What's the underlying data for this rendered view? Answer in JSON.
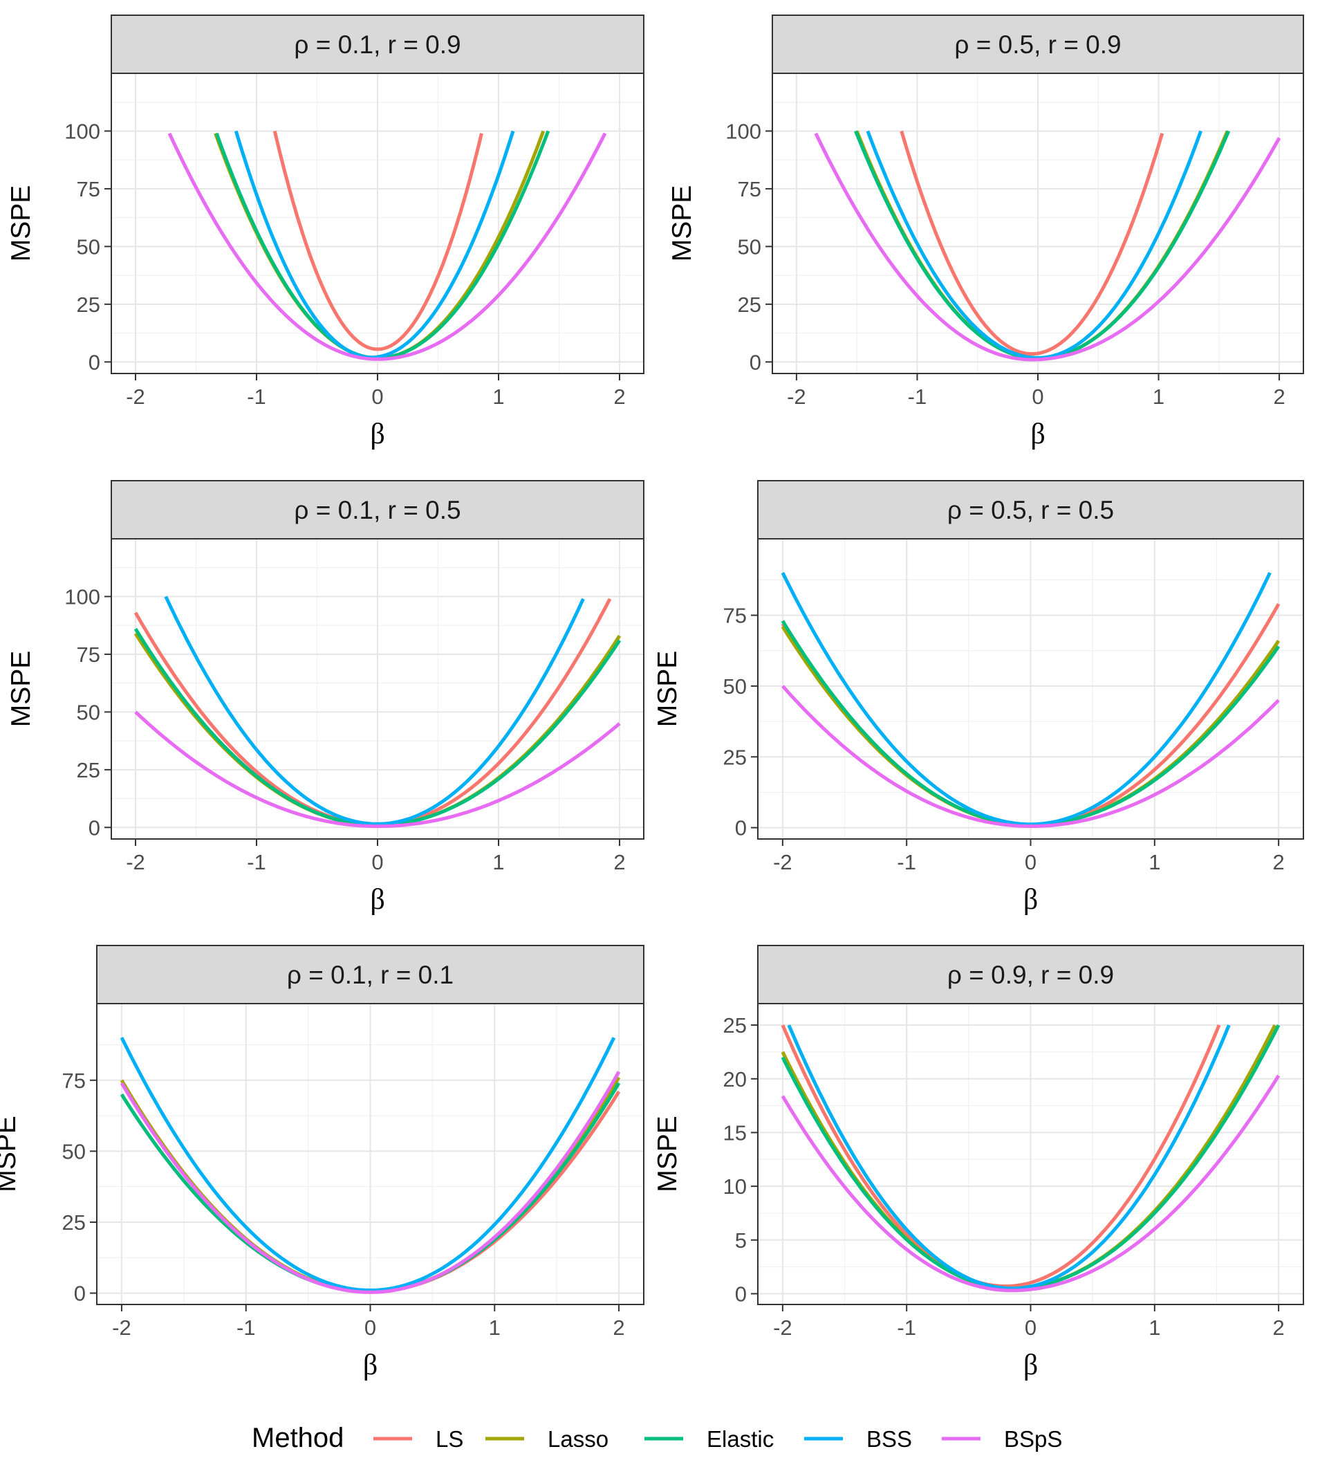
{
  "colors": {
    "LS": "#F8766D",
    "Lasso": "#A3A500",
    "Elastic": "#00BF7D",
    "BSS": "#00B0F6",
    "BSpS": "#E76BF3"
  },
  "legend": {
    "title": "Method",
    "items": [
      "LS",
      "Lasso",
      "Elastic",
      "BSS",
      "BSpS"
    ]
  },
  "chart_data": [
    {
      "type": "line",
      "title": "ρ = 0.1,  r = 0.9",
      "xlabel": "β",
      "ylabel": "MSPE",
      "xlim": [
        -2.2,
        2.2
      ],
      "ylim": [
        -5,
        125
      ],
      "xticks": [
        -2,
        -1,
        0,
        1,
        2
      ],
      "xtick_labels": [
        "-2",
        "-1",
        "0",
        "1",
        "2"
      ],
      "yticks": [
        0,
        25,
        50,
        75,
        100
      ],
      "ytick_labels": [
        "0",
        "25",
        "50",
        "75",
        "100"
      ],
      "series": [
        {
          "name": "LS",
          "x_range": [
            -0.85,
            0.86
          ],
          "vertex": 0.0,
          "min": 5.5,
          "left_end": 100,
          "right_end": 99
        },
        {
          "name": "Lasso",
          "x_range": [
            -1.34,
            1.37
          ],
          "vertex": 0.0,
          "min": 1.7,
          "left_end": 99,
          "right_end": 100
        },
        {
          "name": "Elastic",
          "x_range": [
            -1.33,
            1.41
          ],
          "vertex": 0.0,
          "min": 1.7,
          "left_end": 99,
          "right_end": 100
        },
        {
          "name": "BSS",
          "x_range": [
            -1.17,
            1.12
          ],
          "vertex": -0.05,
          "min": 2.0,
          "left_end": 100,
          "right_end": 100
        },
        {
          "name": "BSpS",
          "x_range": [
            -1.72,
            1.88
          ],
          "vertex": 0.0,
          "min": 1.2,
          "left_end": 99,
          "right_end": 99
        }
      ]
    },
    {
      "type": "line",
      "title": "ρ = 0.5,  r = 0.9",
      "xlabel": "β",
      "ylabel": "MSPE",
      "xlim": [
        -2.2,
        2.2
      ],
      "ylim": [
        -5,
        125
      ],
      "xticks": [
        -2,
        -1,
        0,
        1,
        2
      ],
      "xtick_labels": [
        "-2",
        "-1",
        "0",
        "1",
        "2"
      ],
      "yticks": [
        0,
        25,
        50,
        75,
        100
      ],
      "ytick_labels": [
        "0",
        "25",
        "50",
        "75",
        "100"
      ],
      "series": [
        {
          "name": "LS",
          "x_range": [
            -1.13,
            1.03
          ],
          "vertex": -0.05,
          "min": 3.5,
          "left_end": 100,
          "right_end": 99
        },
        {
          "name": "Lasso",
          "x_range": [
            -1.5,
            1.57
          ],
          "vertex": 0.0,
          "min": 1.5,
          "left_end": 100,
          "right_end": 100
        },
        {
          "name": "Elastic",
          "x_range": [
            -1.51,
            1.58
          ],
          "vertex": 0.0,
          "min": 1.5,
          "left_end": 100,
          "right_end": 100
        },
        {
          "name": "BSS",
          "x_range": [
            -1.41,
            1.35
          ],
          "vertex": 0.0,
          "min": 1.8,
          "left_end": 100,
          "right_end": 100
        },
        {
          "name": "BSpS",
          "x_range": [
            -1.84,
            2.0
          ],
          "vertex": -0.05,
          "min": 1.0,
          "left_end": 99,
          "right_end": 97
        }
      ]
    },
    {
      "type": "line",
      "title": "ρ = 0.1,  r = 0.5",
      "xlabel": "β",
      "ylabel": "MSPE",
      "xlim": [
        -2.2,
        2.2
      ],
      "ylim": [
        -5,
        125
      ],
      "xticks": [
        -2,
        -1,
        0,
        1,
        2
      ],
      "xtick_labels": [
        "-2",
        "-1",
        "0",
        "1",
        "2"
      ],
      "yticks": [
        0,
        25,
        50,
        75,
        100
      ],
      "ytick_labels": [
        "0",
        "25",
        "50",
        "75",
        "100"
      ],
      "series": [
        {
          "name": "LS",
          "x_range": [
            -2.0,
            1.92
          ],
          "vertex": 0.0,
          "min": 1.2,
          "left_end": 93,
          "right_end": 99
        },
        {
          "name": "Lasso",
          "x_range": [
            -2.0,
            2.0
          ],
          "vertex": 0.0,
          "min": 1.0,
          "left_end": 84,
          "right_end": 83
        },
        {
          "name": "Elastic",
          "x_range": [
            -2.0,
            2.0
          ],
          "vertex": 0.0,
          "min": 1.0,
          "left_end": 86,
          "right_end": 81
        },
        {
          "name": "BSS",
          "x_range": [
            -1.75,
            1.7
          ],
          "vertex": 0.0,
          "min": 1.5,
          "left_end": 100,
          "right_end": 99
        },
        {
          "name": "BSpS",
          "x_range": [
            -2.0,
            2.0
          ],
          "vertex": 0.0,
          "min": 0.5,
          "left_end": 50,
          "right_end": 45
        }
      ]
    },
    {
      "type": "line",
      "title": "ρ = 0.5,  r = 0.5",
      "xlabel": "β",
      "ylabel": "MSPE",
      "xlim": [
        -2.2,
        2.2
      ],
      "ylim": [
        -4,
        102
      ],
      "xticks": [
        -2,
        -1,
        0,
        1,
        2
      ],
      "xtick_labels": [
        "-2",
        "-1",
        "0",
        "1",
        "2"
      ],
      "yticks": [
        0,
        25,
        50,
        75
      ],
      "ytick_labels": [
        "0",
        "25",
        "50",
        "75"
      ],
      "series": [
        {
          "name": "LS",
          "x_range": [
            -2.0,
            2.0
          ],
          "vertex": 0.0,
          "min": 1.0,
          "left_end": 72,
          "right_end": 79
        },
        {
          "name": "Lasso",
          "x_range": [
            -2.0,
            2.0
          ],
          "vertex": 0.0,
          "min": 1.0,
          "left_end": 71,
          "right_end": 66
        },
        {
          "name": "Elastic",
          "x_range": [
            -2.0,
            2.0
          ],
          "vertex": 0.0,
          "min": 1.0,
          "left_end": 73,
          "right_end": 64
        },
        {
          "name": "BSS",
          "x_range": [
            -2.0,
            1.93
          ],
          "vertex": 0.0,
          "min": 1.2,
          "left_end": 90,
          "right_end": 90
        },
        {
          "name": "BSpS",
          "x_range": [
            -2.0,
            2.0
          ],
          "vertex": 0.0,
          "min": 0.5,
          "left_end": 50,
          "right_end": 45
        }
      ]
    },
    {
      "type": "line",
      "title": "ρ = 0.1,  r = 0.1",
      "xlabel": "β",
      "ylabel": "MSPE",
      "xlim": [
        -2.2,
        2.2
      ],
      "ylim": [
        -4,
        102
      ],
      "xticks": [
        -2,
        -1,
        0,
        1,
        2
      ],
      "xtick_labels": [
        "-2",
        "-1",
        "0",
        "1",
        "2"
      ],
      "yticks": [
        0,
        25,
        50,
        75
      ],
      "ytick_labels": [
        "0",
        "25",
        "50",
        "75"
      ],
      "series": [
        {
          "name": "LS",
          "x_range": [
            -2.0,
            2.0
          ],
          "vertex": 0.0,
          "min": 0.5,
          "left_end": 70,
          "right_end": 71
        },
        {
          "name": "Lasso",
          "x_range": [
            -2.0,
            2.0
          ],
          "vertex": 0.0,
          "min": 0.5,
          "left_end": 75,
          "right_end": 76
        },
        {
          "name": "Elastic",
          "x_range": [
            -2.0,
            2.0
          ],
          "vertex": 0.0,
          "min": 0.5,
          "left_end": 70,
          "right_end": 74
        },
        {
          "name": "BSS",
          "x_range": [
            -2.0,
            1.96
          ],
          "vertex": 0.0,
          "min": 1.0,
          "left_end": 90,
          "right_end": 90
        },
        {
          "name": "BSpS",
          "x_range": [
            -2.0,
            2.0
          ],
          "vertex": 0.0,
          "min": 0.3,
          "left_end": 74,
          "right_end": 78
        }
      ]
    },
    {
      "type": "line",
      "title": "ρ = 0.9,  r = 0.9",
      "xlabel": "β",
      "ylabel": "MSPE",
      "xlim": [
        -2.2,
        2.2
      ],
      "ylim": [
        -1,
        27
      ],
      "xticks": [
        -2,
        -1,
        0,
        1,
        2
      ],
      "xtick_labels": [
        "-2",
        "-1",
        "0",
        "1",
        "2"
      ],
      "yticks": [
        0,
        5,
        10,
        15,
        20,
        25
      ],
      "ytick_labels": [
        "0",
        "5",
        "10",
        "15",
        "20",
        "25"
      ],
      "series": [
        {
          "name": "LS",
          "x_range": [
            -2.0,
            1.52
          ],
          "vertex": -0.2,
          "min": 0.7,
          "left_end": 25,
          "right_end": 25
        },
        {
          "name": "Lasso",
          "x_range": [
            -2.0,
            1.97
          ],
          "vertex": -0.15,
          "min": 0.5,
          "left_end": 22.5,
          "right_end": 25
        },
        {
          "name": "Elastic",
          "x_range": [
            -2.0,
            2.0
          ],
          "vertex": -0.15,
          "min": 0.5,
          "left_end": 22,
          "right_end": 25
        },
        {
          "name": "BSS",
          "x_range": [
            -1.95,
            1.6
          ],
          "vertex": -0.15,
          "min": 0.5,
          "left_end": 25,
          "right_end": 25
        },
        {
          "name": "BSpS",
          "x_range": [
            -2.0,
            2.0
          ],
          "vertex": -0.15,
          "min": 0.3,
          "left_end": 18.4,
          "right_end": 20.3
        }
      ]
    }
  ]
}
